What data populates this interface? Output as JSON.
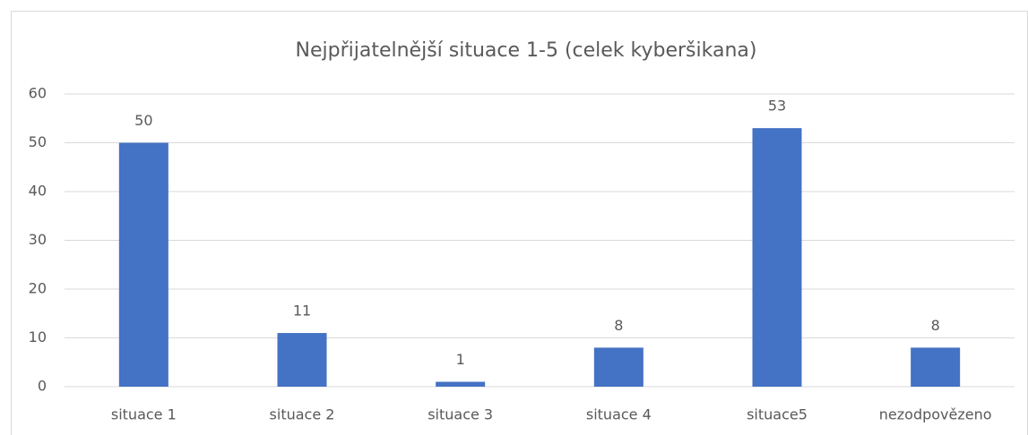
{
  "chart_data": {
    "type": "bar",
    "title": "Nejpřijatelnější situace 1-5 (celek kyberšikana)",
    "categories": [
      "situace 1",
      "situace 2",
      "situace 3",
      "situace 4",
      "situace5",
      "nezodpovězeno"
    ],
    "values": [
      50,
      11,
      1,
      8,
      53,
      8
    ],
    "color": "#4472c4",
    "ylim": [
      0,
      60
    ],
    "yticks": [
      0,
      10,
      20,
      30,
      40,
      50,
      60
    ],
    "grid": true
  }
}
